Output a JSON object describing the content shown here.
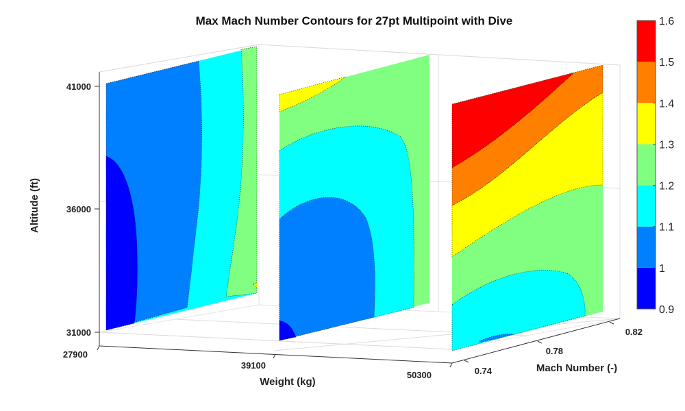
{
  "chart_data": {
    "type": "contour-slices-3d",
    "title": "Max Mach Number Contours for 27pt Multipoint with Dive",
    "xlabel": "Weight (kg)",
    "ylabel": "Mach Number (-)",
    "zlabel": "Altitude (ft)",
    "x_ticks": [
      "27900",
      "39100",
      "50300"
    ],
    "y_ticks": [
      "0.74",
      "0.78",
      "0.82"
    ],
    "z_ticks": [
      "31000",
      "36000",
      "41000"
    ],
    "xlim": [
      27900,
      50300
    ],
    "ylim": [
      0.74,
      0.82
    ],
    "zlim": [
      31000,
      41000
    ],
    "slices_at_weight": [
      27900,
      39100,
      50300
    ],
    "colorbar": {
      "range": [
        0.9,
        1.6
      ],
      "tick_labels": [
        "1.6",
        "1.5",
        "1.4",
        "1.3",
        "1.2",
        "1.1",
        "1",
        "0.9"
      ],
      "levels": [
        {
          "range": [
            0.9,
            1.0
          ],
          "color": "#0000ff"
        },
        {
          "range": [
            1.0,
            1.1
          ],
          "color": "#0080ff"
        },
        {
          "range": [
            1.1,
            1.2
          ],
          "color": "#00ffff"
        },
        {
          "range": [
            1.2,
            1.3
          ],
          "color": "#80ff80"
        },
        {
          "range": [
            1.3,
            1.4
          ],
          "color": "#ffff00"
        },
        {
          "range": [
            1.4,
            1.5
          ],
          "color": "#ff8000"
        },
        {
          "range": [
            1.5,
            1.6
          ],
          "color": "#ff0000"
        }
      ]
    }
  }
}
